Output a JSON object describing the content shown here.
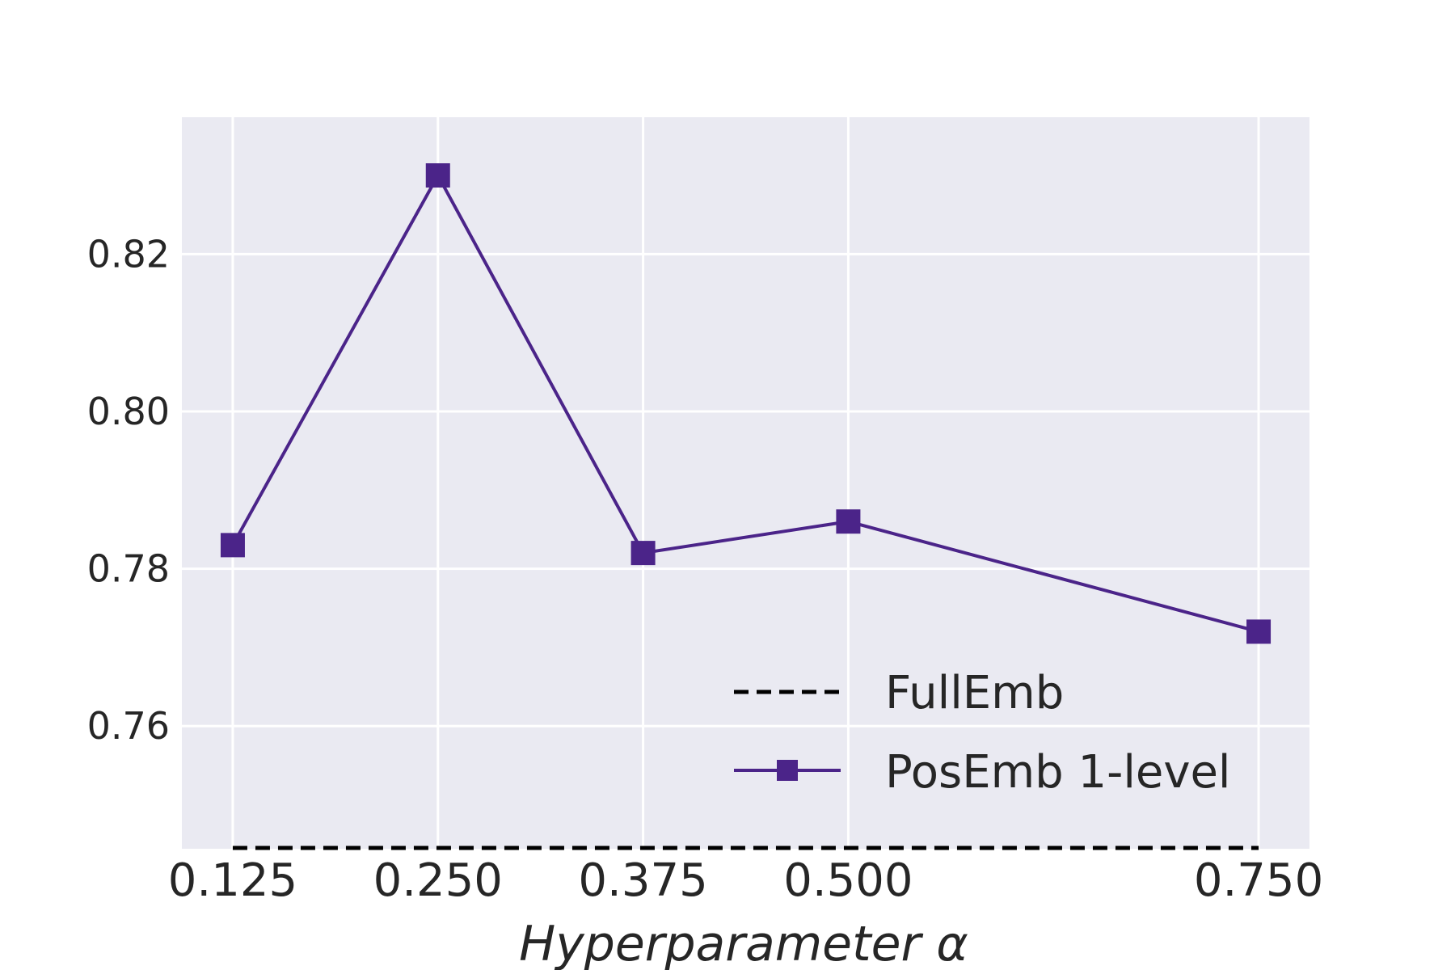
{
  "chart_data": {
    "type": "line",
    "title": "",
    "xlabel": "Hyperparameter α",
    "ylabel": "",
    "x": [
      0.125,
      0.25,
      0.375,
      0.5,
      0.75
    ],
    "x_tick_labels": [
      "0.125",
      "0.250",
      "0.375",
      "0.500",
      "0.750"
    ],
    "y_ticks": [
      0.76,
      0.78,
      0.8,
      0.82
    ],
    "y_tick_labels": [
      "0.76",
      "0.78",
      "0.80",
      "0.82"
    ],
    "xlim": [
      0.094,
      0.781
    ],
    "ylim": [
      0.7444,
      0.8374
    ],
    "grid": true,
    "legend_position": "bottom-right",
    "series": [
      {
        "name": "FullEmb",
        "style": "dashed",
        "marker": "none",
        "color": "#000000",
        "values": [
          0.7445,
          0.7445,
          0.7445,
          0.7445,
          0.7445
        ]
      },
      {
        "name": "PosEmb 1-level",
        "style": "solid",
        "marker": "square",
        "color": "#4b2489",
        "values": [
          0.783,
          0.83,
          0.782,
          0.786,
          0.772
        ]
      }
    ],
    "colors": {
      "plot_background": "#eaeaf2",
      "grid": "#ffffff"
    }
  }
}
